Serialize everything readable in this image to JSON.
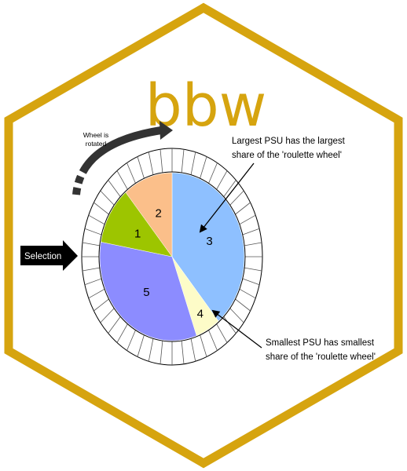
{
  "logo": {
    "title": "bbw",
    "color": "#d6a40f"
  },
  "wheel": {
    "segments": [
      {
        "label": "1",
        "share": 0.111,
        "color": "#9dc500"
      },
      {
        "label": "2",
        "share": 0.111,
        "color": "#fbbf8a"
      },
      {
        "label": "3",
        "share": 0.389,
        "color": "#8ec0ff"
      },
      {
        "label": "4",
        "share": 0.056,
        "color": "#fdfcc8"
      },
      {
        "label": "5",
        "share": 0.333,
        "color": "#8c8cff"
      }
    ],
    "tick_count": 48
  },
  "annotations": {
    "rotation_line1": "Wheel is",
    "rotation_line2": "rotated",
    "selection": "Selection",
    "largest_line1": "Largest PSU has the largest",
    "largest_line2": "share of the 'roulette wheel'",
    "smallest_line1": "Smallest PSU has smallest",
    "smallest_line2": "share of the 'roulette wheel'"
  }
}
